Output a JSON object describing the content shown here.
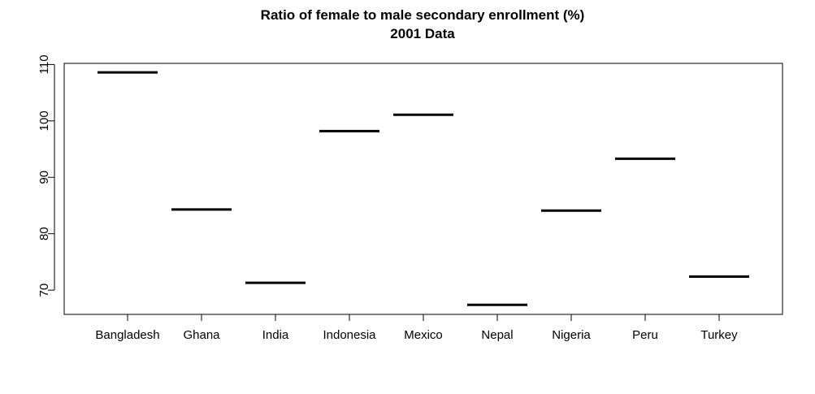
{
  "chart_data": {
    "type": "bar",
    "title": "Ratio of female to male secondary enrollment (%)",
    "subtitle": "2001 Data",
    "xlabel": "",
    "ylabel": "",
    "categories": [
      "Bangladesh",
      "Ghana",
      "India",
      "Indonesia",
      "Mexico",
      "Nepal",
      "Nigeria",
      "Peru",
      "Turkey"
    ],
    "values": [
      108.6,
      84.3,
      71.3,
      98.2,
      101.1,
      67.4,
      84.1,
      93.3,
      72.4
    ],
    "ylim": [
      65.7,
      110.2
    ],
    "yticks": [
      70,
      80,
      90,
      100,
      110
    ],
    "grid": false,
    "legend": "none",
    "mark_style": "horizontal segment per category",
    "colors": {
      "mark": "#000000",
      "axis": "#000000",
      "background": "#ffffff"
    }
  }
}
